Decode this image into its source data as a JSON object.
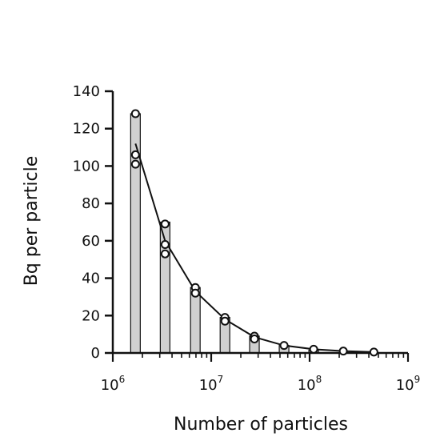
{
  "chart_data": {
    "type": "bar",
    "title": "",
    "xlabel": "Number of particles",
    "ylabel": "Bq per particle",
    "x_scale": "log10",
    "xlim_exp": [
      6,
      9
    ],
    "ylim": [
      0,
      140
    ],
    "yticks": [
      0,
      20,
      40,
      60,
      80,
      100,
      120,
      140
    ],
    "xticks": [
      {
        "base": "10",
        "exp": "6"
      },
      {
        "base": "10",
        "exp": "7"
      },
      {
        "base": "10",
        "exp": "8"
      },
      {
        "base": "10",
        "exp": "9"
      }
    ],
    "grid": false,
    "bars": [
      {
        "x": 1700000,
        "value": 128
      },
      {
        "x": 3400000,
        "value": 70
      },
      {
        "x": 6900000,
        "value": 35
      },
      {
        "x": 13800000,
        "value": 19
      },
      {
        "x": 27500000,
        "value": 9
      },
      {
        "x": 55000000,
        "value": 4
      },
      {
        "x": 110000000,
        "value": 1.5
      }
    ],
    "points": [
      {
        "x": 1700000,
        "y": 128
      },
      {
        "x": 1700000,
        "y": 106
      },
      {
        "x": 1700000,
        "y": 101
      },
      {
        "x": 3400000,
        "y": 69
      },
      {
        "x": 3400000,
        "y": 58
      },
      {
        "x": 3400000,
        "y": 53
      },
      {
        "x": 6900000,
        "y": 35
      },
      {
        "x": 6900000,
        "y": 32
      },
      {
        "x": 13800000,
        "y": 19
      },
      {
        "x": 13800000,
        "y": 17
      },
      {
        "x": 27500000,
        "y": 9
      },
      {
        "x": 27500000,
        "y": 7.5
      },
      {
        "x": 55000000,
        "y": 4
      },
      {
        "x": 110000000,
        "y": 2
      },
      {
        "x": 220000000,
        "y": 1
      },
      {
        "x": 450000000,
        "y": 0.5
      }
    ],
    "line": [
      {
        "x": 1700000,
        "y": 112
      },
      {
        "x": 3400000,
        "y": 60
      },
      {
        "x": 6900000,
        "y": 33
      },
      {
        "x": 13800000,
        "y": 18
      },
      {
        "x": 27500000,
        "y": 8.5
      },
      {
        "x": 55000000,
        "y": 4
      },
      {
        "x": 110000000,
        "y": 2
      },
      {
        "x": 220000000,
        "y": 1
      },
      {
        "x": 450000000,
        "y": 0.5
      }
    ],
    "colors": {
      "bar_fill": "#d0d0d0",
      "bar_stroke": "#111111",
      "line": "#111111",
      "marker_fill": "#ffffff",
      "marker_stroke": "#111111"
    }
  }
}
